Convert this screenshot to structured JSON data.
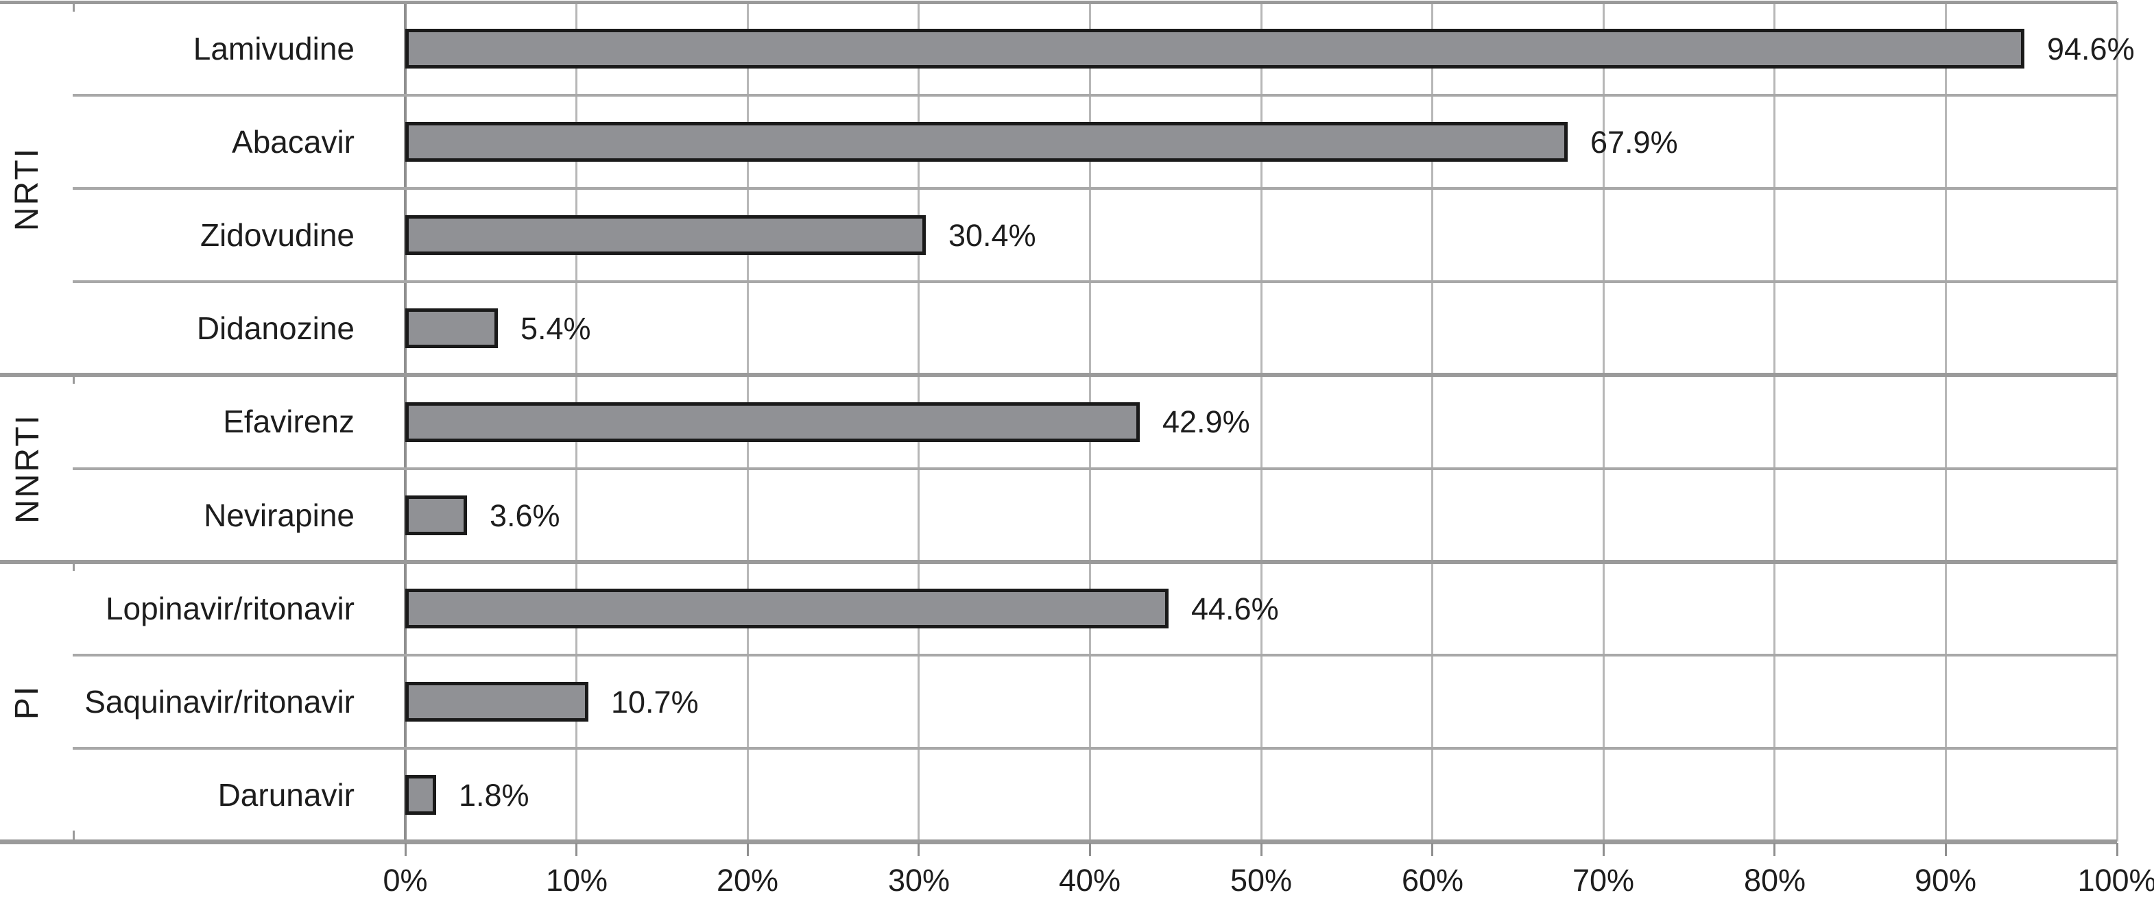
{
  "chart_data": {
    "type": "bar",
    "orientation": "horizontal",
    "title": "",
    "xlabel": "",
    "ylabel": "",
    "xlim": [
      0,
      100
    ],
    "grid": true,
    "x_ticks": [
      "0%",
      "10%",
      "20%",
      "30%",
      "40%",
      "50%",
      "60%",
      "70%",
      "80%",
      "90%",
      "100%"
    ],
    "bar_color": "#909195",
    "bar_border_color": "#1a1a1a",
    "groups": [
      {
        "label": "NRTI",
        "items": [
          {
            "label": "Lamivudine",
            "value": 94.6,
            "value_label": "94.6%"
          },
          {
            "label": "Abacavir",
            "value": 67.9,
            "value_label": "67.9%"
          },
          {
            "label": "Zidovudine",
            "value": 30.4,
            "value_label": "30.4%"
          },
          {
            "label": "Didanozine",
            "value": 5.4,
            "value_label": "5.4%"
          }
        ]
      },
      {
        "label": "NNRTI",
        "items": [
          {
            "label": "Efavirenz",
            "value": 42.9,
            "value_label": "42.9%"
          },
          {
            "label": "Nevirapine",
            "value": 3.6,
            "value_label": "3.6%"
          }
        ]
      },
      {
        "label": "PI",
        "items": [
          {
            "label": "Lopinavir/ritonavir",
            "value": 44.6,
            "value_label": "44.6%"
          },
          {
            "label": "Saquinavir/ritonavir",
            "value": 10.7,
            "value_label": "10.7%"
          },
          {
            "label": "Darunavir",
            "value": 1.8,
            "value_label": "1.8%"
          }
        ]
      }
    ]
  }
}
